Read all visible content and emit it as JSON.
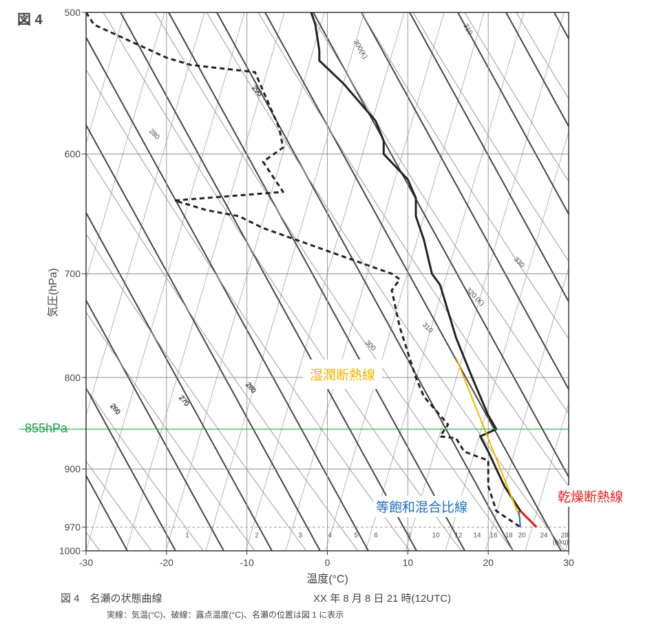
{
  "figure_label": "図 4",
  "caption": "図 4　名瀬の状態曲線",
  "caption_time": "XX 年  8 月  8 日 21 時(12UTC)",
  "note": "実線：気温(°C)、破線：露点温度(°C)、名瀬の位置は図 1 に表示",
  "annotations": {
    "moist_adiabat": "湿潤断熱線",
    "mixing_ratio": "等飽和混合比線",
    "dry_adiabat": "乾燥断熱線",
    "level_855": "855hPa"
  },
  "colors": {
    "moist": "#f0b400",
    "mixing": "#2070c0",
    "dry": "#e02020",
    "level": "#10a040"
  },
  "chart_data": {
    "type": "line",
    "xlabel": "温度(°C)",
    "ylabel": "気圧(hPa)",
    "x_ticks": [
      -30,
      -20,
      -10,
      0,
      10,
      20,
      30
    ],
    "xlim": [
      -30,
      30
    ],
    "y_ticks": [
      500,
      600,
      700,
      800,
      900,
      970,
      1000
    ],
    "ylim": [
      500,
      1000
    ],
    "y_scale": "log-pressure",
    "dry_adiabat_labels": [
      "260",
      "270",
      "280",
      "290",
      "300(K)",
      "310"
    ],
    "moist_adiabat_labels": [
      "260",
      "270",
      "280",
      "280",
      "290",
      "300",
      "310",
      "320 (K)",
      "330"
    ],
    "mixing_ratio_labels": [
      "1",
      "2",
      "3",
      "4",
      "5",
      "6",
      "8",
      "10",
      "12",
      "14",
      "16",
      "18",
      "20",
      "24",
      "28"
    ],
    "mixing_ratio_unit": "(g/kg)",
    "series": [
      {
        "name": "気温",
        "style": "solid",
        "points": [
          [
            -2,
            500
          ],
          [
            -1.5,
            508
          ],
          [
            -1,
            525
          ],
          [
            -1,
            532
          ],
          [
            2,
            548
          ],
          [
            6,
            575
          ],
          [
            7,
            590
          ],
          [
            7,
            600
          ],
          [
            10,
            620
          ],
          [
            11,
            635
          ],
          [
            11,
            650
          ],
          [
            12,
            670
          ],
          [
            13,
            700
          ],
          [
            14,
            710
          ],
          [
            16,
            760
          ],
          [
            18,
            800
          ],
          [
            20,
            840
          ],
          [
            21,
            855
          ],
          [
            19,
            863
          ],
          [
            20,
            880
          ],
          [
            21,
            900
          ],
          [
            22,
            920
          ],
          [
            24,
            950
          ],
          [
            26,
            970
          ]
        ]
      },
      {
        "name": "露点温度",
        "style": "dashed",
        "points": [
          [
            -30,
            500
          ],
          [
            -29,
            508
          ],
          [
            -20,
            530
          ],
          [
            -17,
            535
          ],
          [
            -9,
            540
          ],
          [
            -6,
            580
          ],
          [
            -5.5,
            595
          ],
          [
            -8,
            606
          ],
          [
            -5.5,
            630
          ],
          [
            -19,
            637
          ],
          [
            -15,
            645
          ],
          [
            -11,
            650
          ],
          [
            -8,
            660
          ],
          [
            8,
            700
          ],
          [
            9,
            705
          ],
          [
            8,
            715
          ],
          [
            9,
            750
          ],
          [
            11,
            800
          ],
          [
            12,
            820
          ],
          [
            15,
            850
          ],
          [
            14,
            863
          ],
          [
            16,
            865
          ],
          [
            17,
            880
          ],
          [
            19,
            887
          ],
          [
            20,
            890
          ],
          [
            20,
            900
          ],
          [
            20,
            920
          ],
          [
            21,
            950
          ],
          [
            24,
            970
          ]
        ]
      }
    ],
    "moist_adiabat_ref": [
      [
        16,
        780
      ],
      [
        24,
        960
      ]
    ],
    "mixing_ratio_ref": [
      [
        24,
        970
      ],
      [
        23.8,
        950
      ]
    ],
    "dry_adiabat_ref": [
      [
        26,
        970
      ],
      [
        24,
        950
      ]
    ],
    "level_line": 855,
    "grid": true
  }
}
